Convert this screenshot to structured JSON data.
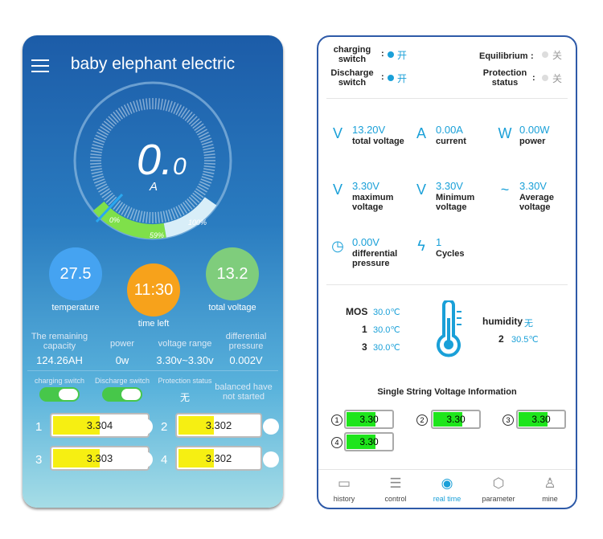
{
  "left": {
    "title": "baby elephant electric",
    "gauge": {
      "value_main": "0.",
      "value_small": "0",
      "unit": "A",
      "marks": [
        "0%",
        "59%",
        "100%"
      ]
    },
    "circles": [
      {
        "value": "27.5",
        "label": "temperature"
      },
      {
        "value": "11:30",
        "label": "time left"
      },
      {
        "value": "13.2",
        "label": "total voltage"
      }
    ],
    "stats": [
      {
        "label": "The remaining capacity",
        "value": "124.26AH"
      },
      {
        "label": "power",
        "value": "0w"
      },
      {
        "label": "voltage range",
        "value": "3.30v~3.30v"
      },
      {
        "label": "differential pressure",
        "value": "0.002V"
      }
    ],
    "switches": [
      {
        "label": "charging switch"
      },
      {
        "label": "Discharge switch"
      },
      {
        "label": "Protection status",
        "value": "无"
      },
      {
        "label": "balanced have not started"
      }
    ],
    "cells": [
      {
        "index": "1",
        "value": "3.304"
      },
      {
        "index": "2",
        "value": "3.302"
      },
      {
        "index": "3",
        "value": "3.303"
      },
      {
        "index": "4",
        "value": "3.302"
      }
    ]
  },
  "right": {
    "separator": ":",
    "status": [
      {
        "label": "charging switch",
        "value": "开"
      },
      {
        "label": "Discharge switch",
        "value": "开"
      },
      {
        "label": "Equilibrium",
        "value": "关"
      },
      {
        "label": "Protection status",
        "value": "关"
      }
    ],
    "metrics": [
      {
        "value": "13.20V",
        "label": "total voltage"
      },
      {
        "value": "0.00A",
        "label": "current"
      },
      {
        "value": "0.00W",
        "label": "power"
      },
      {
        "value": "3.30V",
        "label": "maximum voltage"
      },
      {
        "value": "3.30V",
        "label": "Minimum voltage"
      },
      {
        "value": "3.30V",
        "label": "Average voltage"
      },
      {
        "value": "0.00V",
        "label": "differential pressure"
      },
      {
        "value": "1",
        "label": "Cycles"
      }
    ],
    "temps": {
      "mos_label": "MOS",
      "mos": "30.0℃",
      "t1_label": "1",
      "t1": "30.0℃",
      "t3_label": "3",
      "t3": "30.0℃",
      "humidity_label": "humidity",
      "humidity": "无",
      "t2_label": "2",
      "t2": "30.5℃"
    },
    "cells_title": "Single String Voltage Information",
    "cells": [
      {
        "index": "1",
        "value": "3.30"
      },
      {
        "index": "2",
        "value": "3.30"
      },
      {
        "index": "3",
        "value": "3.30"
      },
      {
        "index": "4",
        "value": "3.30"
      }
    ],
    "nav": [
      "history",
      "control",
      "real time",
      "parameter",
      "mine"
    ]
  }
}
